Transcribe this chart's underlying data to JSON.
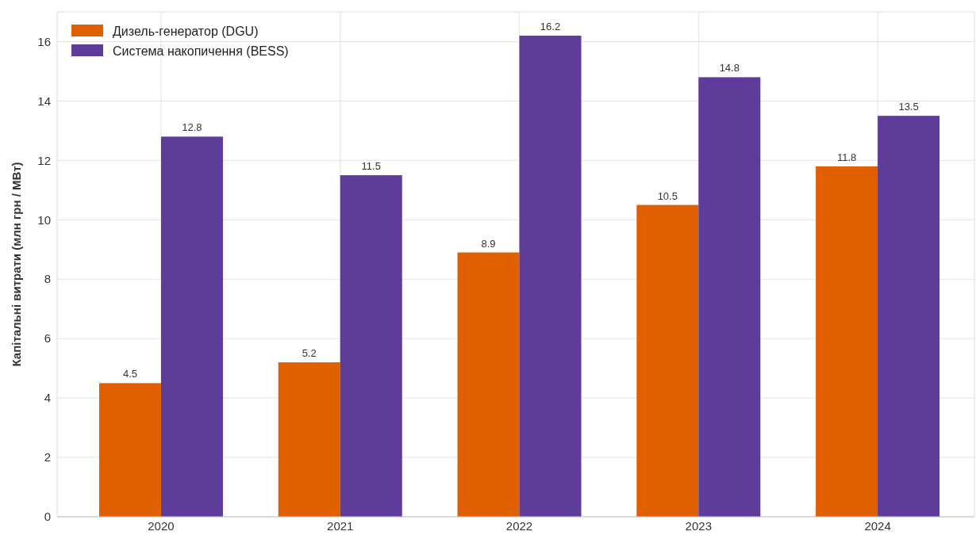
{
  "chart_data": {
    "type": "bar",
    "ylabel": "Капітальні витрати (млн грн / МВт)",
    "categories": [
      "2020",
      "2021",
      "2022",
      "2023",
      "2024"
    ],
    "series": [
      {
        "name": "Дизель-генератор (DGU)",
        "color": "#e06000",
        "values": [
          4.5,
          5.2,
          8.9,
          10.5,
          11.8
        ]
      },
      {
        "name": "Система накопичення (BESS)",
        "color": "#5e3c99",
        "values": [
          12.8,
          11.5,
          16.2,
          14.8,
          13.5
        ]
      }
    ],
    "ylim": [
      0,
      17
    ],
    "yticks": [
      0,
      2,
      4,
      6,
      8,
      10,
      12,
      14,
      16
    ],
    "grid": true,
    "legend": "top left",
    "data_labels": true
  }
}
